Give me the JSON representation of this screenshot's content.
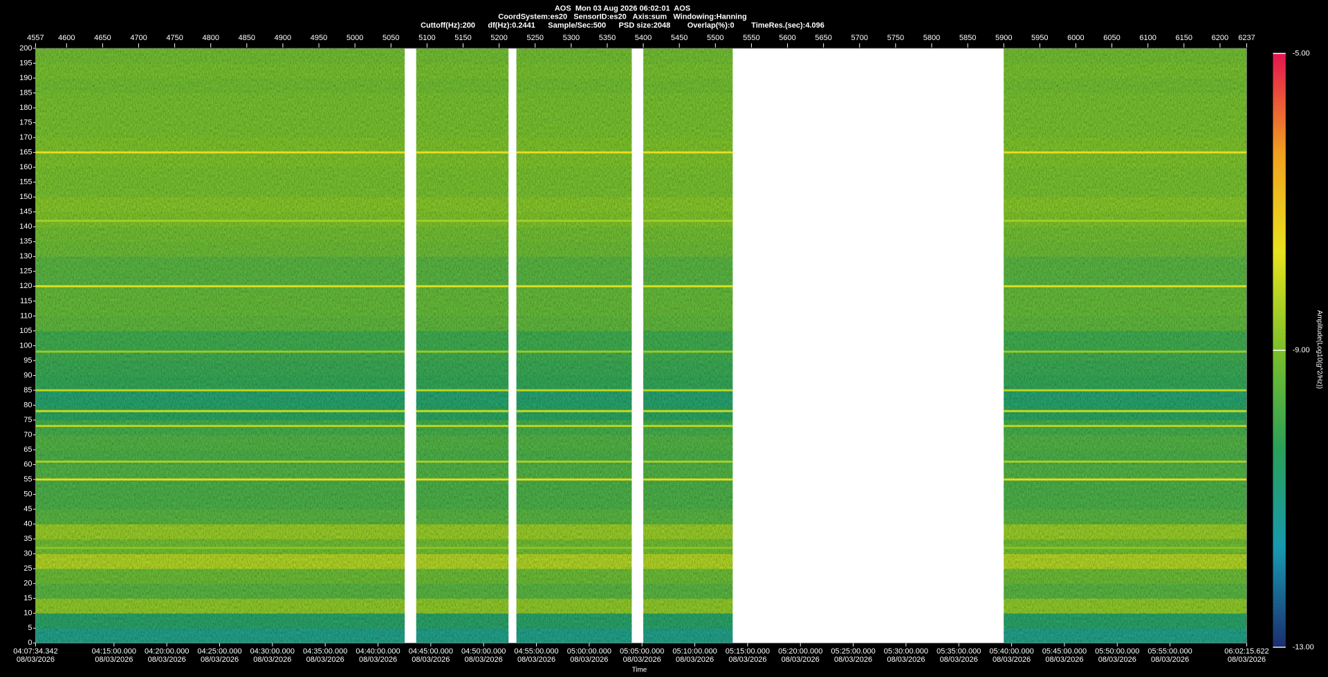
{
  "chart_data": {
    "type": "spectrogram",
    "header": [
      "AOS  Mon 03 Aug 2026 06:02:01  AOS",
      "CoordSystem:es20   SensorID:es20   Axis:sum   Windowing:Hanning",
      "Cuttoff(Hz):200      df(Hz):0.2441      Sample/Sec:500      PSD size:2048        Overlap(%):0        TimeRes.(sec):4.096"
    ],
    "xlabel": "Time",
    "zlabel": "Amplitude(Log10(g^2/Hz))",
    "xlim": [
      4557,
      6237
    ],
    "xticks": [
      4557,
      4600,
      4650,
      4700,
      4750,
      4800,
      4850,
      4900,
      4950,
      5000,
      5050,
      5100,
      5150,
      5200,
      5250,
      5300,
      5350,
      5400,
      5450,
      5500,
      5550,
      5600,
      5650,
      5700,
      5750,
      5800,
      5850,
      5900,
      5950,
      6000,
      6050,
      6100,
      6150,
      6200,
      6237
    ],
    "time_lim": [
      "04:07:34.342",
      "06:02:15.622"
    ],
    "time_ticks": [
      {
        "time": "04:07:34.342",
        "date": "08/03/2026"
      },
      {
        "time": "04:15:00.000",
        "date": "08/03/2026"
      },
      {
        "time": "04:20:00.000",
        "date": "08/03/2026"
      },
      {
        "time": "04:25:00.000",
        "date": "08/03/2026"
      },
      {
        "time": "04:30:00.000",
        "date": "08/03/2026"
      },
      {
        "time": "04:35:00.000",
        "date": "08/03/2026"
      },
      {
        "time": "04:40:00.000",
        "date": "08/03/2026"
      },
      {
        "time": "04:45:00.000",
        "date": "08/03/2026"
      },
      {
        "time": "04:50:00.000",
        "date": "08/03/2026"
      },
      {
        "time": "04:55:00.000",
        "date": "08/03/2026"
      },
      {
        "time": "05:00:00.000",
        "date": "08/03/2026"
      },
      {
        "time": "05:05:00.000",
        "date": "08/03/2026"
      },
      {
        "time": "05:10:00.000",
        "date": "08/03/2026"
      },
      {
        "time": "05:15:00.000",
        "date": "08/03/2026"
      },
      {
        "time": "05:20:00.000",
        "date": "08/03/2026"
      },
      {
        "time": "05:25:00.000",
        "date": "08/03/2026"
      },
      {
        "time": "05:30:00.000",
        "date": "08/03/2026"
      },
      {
        "time": "05:35:00.000",
        "date": "08/03/2026"
      },
      {
        "time": "05:40:00.000",
        "date": "08/03/2026"
      },
      {
        "time": "05:45:00.000",
        "date": "08/03/2026"
      },
      {
        "time": "05:50:00.000",
        "date": "08/03/2026"
      },
      {
        "time": "05:55:00.000",
        "date": "08/03/2026"
      },
      {
        "time": "06:02:15.622",
        "date": "08/03/2026"
      }
    ],
    "ylim": [
      0,
      200
    ],
    "yticks": [
      0,
      5,
      10,
      15,
      20,
      25,
      30,
      35,
      40,
      45,
      50,
      55,
      60,
      65,
      70,
      75,
      80,
      85,
      90,
      95,
      100,
      105,
      110,
      115,
      120,
      125,
      130,
      135,
      140,
      145,
      150,
      155,
      160,
      165,
      170,
      175,
      180,
      185,
      190,
      195,
      200
    ],
    "zlim": [
      -13,
      -5
    ],
    "zticks": [
      {
        "value": -13,
        "label": "-13.00"
      },
      {
        "value": -9,
        "label": "-9.00"
      },
      {
        "value": -5,
        "label": "-5.00"
      }
    ],
    "colormap": [
      "#1b2d6e",
      "#1899b0",
      "#2aa05a",
      "#7bbf2a",
      "#e8e31e",
      "#f0a020",
      "#e3154f"
    ],
    "segments": [
      {
        "start": 4557,
        "end": 5069
      },
      {
        "start": 5085,
        "end": 5213
      },
      {
        "start": 5224,
        "end": 5384
      },
      {
        "start": 5400,
        "end": 5524
      },
      {
        "start": 5900,
        "end": 6237
      }
    ],
    "freq_bins": [
      0,
      5,
      10,
      15,
      20,
      25,
      30,
      35,
      40,
      45,
      50,
      55,
      60,
      65,
      70,
      75,
      80,
      85,
      90,
      95,
      100,
      105,
      110,
      115,
      120,
      125,
      130,
      135,
      140,
      145,
      150,
      155,
      160,
      165,
      170,
      175,
      180,
      185,
      190,
      195,
      200
    ],
    "amplitude": [
      -11,
      -10.5,
      -8.8,
      -9.6,
      -9.3,
      -8.4,
      -9.2,
      -8.7,
      -9.6,
      -9.8,
      -9.8,
      -9.7,
      -9.8,
      -9.7,
      -9.9,
      -10.4,
      -10.6,
      -10.2,
      -10.1,
      -10,
      -10,
      -9.5,
      -9.4,
      -9.4,
      -9.6,
      -9.6,
      -9.3,
      -9.2,
      -9,
      -8.9,
      -9.1,
      -9.1,
      -9,
      -9,
      -9.1,
      -9.1,
      -9.1,
      -9.2,
      -9.1,
      -9.2
    ],
    "lines": [
      {
        "freq": 165,
        "amplitude": -7.5
      },
      {
        "freq": 142,
        "amplitude": -8.5
      },
      {
        "freq": 120,
        "amplitude": -7.8
      },
      {
        "freq": 98,
        "amplitude": -8.6
      },
      {
        "freq": 85,
        "amplitude": -8.2
      },
      {
        "freq": 78,
        "amplitude": -8
      },
      {
        "freq": 73,
        "amplitude": -8.2
      },
      {
        "freq": 61,
        "amplitude": -8.4
      },
      {
        "freq": 55,
        "amplitude": -7.5
      },
      {
        "freq": 32,
        "amplitude": -8.8
      }
    ]
  }
}
